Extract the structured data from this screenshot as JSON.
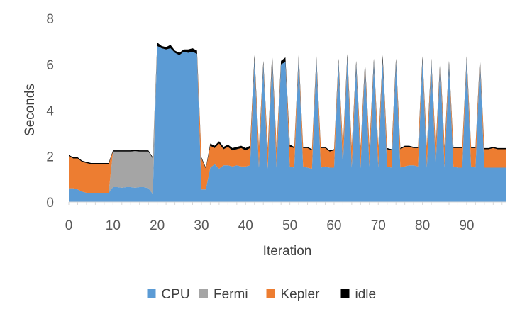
{
  "chart_data": {
    "type": "area",
    "stacked": true,
    "xlabel": "Iteration",
    "ylabel": "Seconds",
    "xlim": [
      0,
      99
    ],
    "ylim": [
      0,
      8
    ],
    "x_ticks": [
      0,
      10,
      20,
      30,
      40,
      50,
      60,
      70,
      80,
      90
    ],
    "y_ticks": [
      0,
      2,
      4,
      6,
      8
    ],
    "grid": false,
    "legend_position": "bottom",
    "x": [
      0,
      1,
      2,
      3,
      4,
      5,
      6,
      7,
      8,
      9,
      10,
      11,
      12,
      13,
      14,
      15,
      16,
      17,
      18,
      19,
      20,
      21,
      22,
      23,
      24,
      25,
      26,
      27,
      28,
      29,
      30,
      31,
      32,
      33,
      34,
      35,
      36,
      37,
      38,
      39,
      40,
      41,
      42,
      43,
      44,
      45,
      46,
      47,
      48,
      49,
      50,
      51,
      52,
      53,
      54,
      55,
      56,
      57,
      58,
      59,
      60,
      61,
      62,
      63,
      64,
      65,
      66,
      67,
      68,
      69,
      70,
      71,
      72,
      73,
      74,
      75,
      76,
      77,
      78,
      79,
      80,
      81,
      82,
      83,
      84,
      85,
      86,
      87,
      88,
      89,
      90,
      91,
      92,
      93,
      94,
      95,
      96,
      97,
      98,
      99
    ],
    "series": [
      {
        "name": "CPU",
        "color": "#5B9BD5",
        "values": [
          0.6,
          0.6,
          0.55,
          0.45,
          0.4,
          0.4,
          0.4,
          0.4,
          0.4,
          0.4,
          0.65,
          0.65,
          0.62,
          0.65,
          0.65,
          0.62,
          0.65,
          0.65,
          0.6,
          0.35,
          6.8,
          6.7,
          6.65,
          6.7,
          6.5,
          6.4,
          6.55,
          6.5,
          6.55,
          6.45,
          0.55,
          0.55,
          1.5,
          1.65,
          1.45,
          1.6,
          1.6,
          1.55,
          1.6,
          1.55,
          1.55,
          1.6,
          6.2,
          1.5,
          6.0,
          1.45,
          6.3,
          1.5,
          6.0,
          6.1,
          1.55,
          1.5,
          6.3,
          1.55,
          1.5,
          1.45,
          6.2,
          1.5,
          1.55,
          1.5,
          1.5,
          6.1,
          1.55,
          6.3,
          1.5,
          6.0,
          1.5,
          6.0,
          1.55,
          6.1,
          1.5,
          6.2,
          1.55,
          1.5,
          6.1,
          1.5,
          1.55,
          1.6,
          1.6,
          1.55,
          6.2,
          1.5,
          6.1,
          1.55,
          6.1,
          1.5,
          6.0,
          1.55,
          1.5,
          1.5,
          6.2,
          1.55,
          1.5,
          6.2,
          1.5,
          1.5,
          1.5,
          1.5,
          1.5,
          1.5
        ]
      },
      {
        "name": "Fermi",
        "color": "#A5A5A5",
        "values": [
          0,
          0,
          0,
          0,
          0,
          0,
          0,
          0,
          0,
          0,
          1.55,
          1.55,
          1.58,
          1.55,
          1.55,
          1.6,
          1.55,
          1.55,
          1.6,
          1.55,
          0,
          0,
          0,
          0,
          0,
          0,
          0,
          0,
          0,
          0,
          0,
          0,
          0,
          0,
          0,
          0,
          0,
          0,
          0,
          0,
          0,
          0,
          0,
          0,
          0,
          0,
          0,
          0,
          0,
          0,
          0,
          0,
          0,
          0,
          0,
          0,
          0,
          0,
          0,
          0,
          0,
          0,
          0,
          0,
          0,
          0,
          0,
          0,
          0,
          0,
          0,
          0,
          0,
          0,
          0,
          0,
          0,
          0,
          0,
          0,
          0,
          0,
          0,
          0,
          0,
          0,
          0,
          0,
          0,
          0,
          0,
          0,
          0,
          0,
          0,
          0,
          0,
          0,
          0,
          0
        ]
      },
      {
        "name": "Kepler",
        "color": "#ED7D31",
        "values": [
          1.4,
          1.3,
          1.35,
          1.3,
          1.3,
          1.25,
          1.25,
          1.25,
          1.25,
          1.25,
          0,
          0,
          0,
          0,
          0,
          0,
          0,
          0,
          0,
          0,
          0,
          0,
          0,
          0,
          0,
          0,
          0,
          0,
          0,
          0,
          1.35,
          0.9,
          0.95,
          0.7,
          1.1,
          0.7,
          0.8,
          0.7,
          0.7,
          0.8,
          0.7,
          0.75,
          0,
          0.85,
          0,
          0.85,
          0,
          0.8,
          0,
          0,
          0.85,
          0.85,
          0,
          0.8,
          0.85,
          0.8,
          0,
          0.85,
          0.8,
          0.7,
          0.75,
          0,
          0.8,
          0,
          0.85,
          0,
          0.85,
          0,
          0.85,
          0,
          0.85,
          0,
          0.75,
          0.75,
          0,
          0.8,
          0.85,
          0.8,
          0.75,
          0.8,
          0,
          0.85,
          0,
          0.8,
          0,
          0.85,
          0,
          0.8,
          0.85,
          0.85,
          0,
          0.8,
          0.85,
          0,
          0.8,
          0.8,
          0.85,
          0.8,
          0.8,
          0.8
        ]
      },
      {
        "name": "idle",
        "color": "#000000",
        "values": [
          0.05,
          0.05,
          0.05,
          0.05,
          0.05,
          0.05,
          0.05,
          0.05,
          0.05,
          0.05,
          0.05,
          0.05,
          0.05,
          0.05,
          0.05,
          0.05,
          0.05,
          0.05,
          0.05,
          0.05,
          0.15,
          0.1,
          0.1,
          0.15,
          0.1,
          0.1,
          0.1,
          0.15,
          0.15,
          0.15,
          0.05,
          0.05,
          0.1,
          0.1,
          0.1,
          0.1,
          0.1,
          0.1,
          0.1,
          0.1,
          0.1,
          0.1,
          0.2,
          0.05,
          0.15,
          0.05,
          0.2,
          0.05,
          0.15,
          0.2,
          0.1,
          0.05,
          0.15,
          0.05,
          0.05,
          0.05,
          0.15,
          0.05,
          0.05,
          0.05,
          0.05,
          0.15,
          0.05,
          0.15,
          0.05,
          0.15,
          0.05,
          0.15,
          0.05,
          0.15,
          0.05,
          0.2,
          0.05,
          0.05,
          0.15,
          0.05,
          0.05,
          0.05,
          0.05,
          0.05,
          0.15,
          0.05,
          0.15,
          0.05,
          0.15,
          0.05,
          0.15,
          0.05,
          0.05,
          0.05,
          0.15,
          0.05,
          0.05,
          0.15,
          0.05,
          0.05,
          0.05,
          0.05,
          0.05,
          0.05
        ]
      }
    ]
  }
}
